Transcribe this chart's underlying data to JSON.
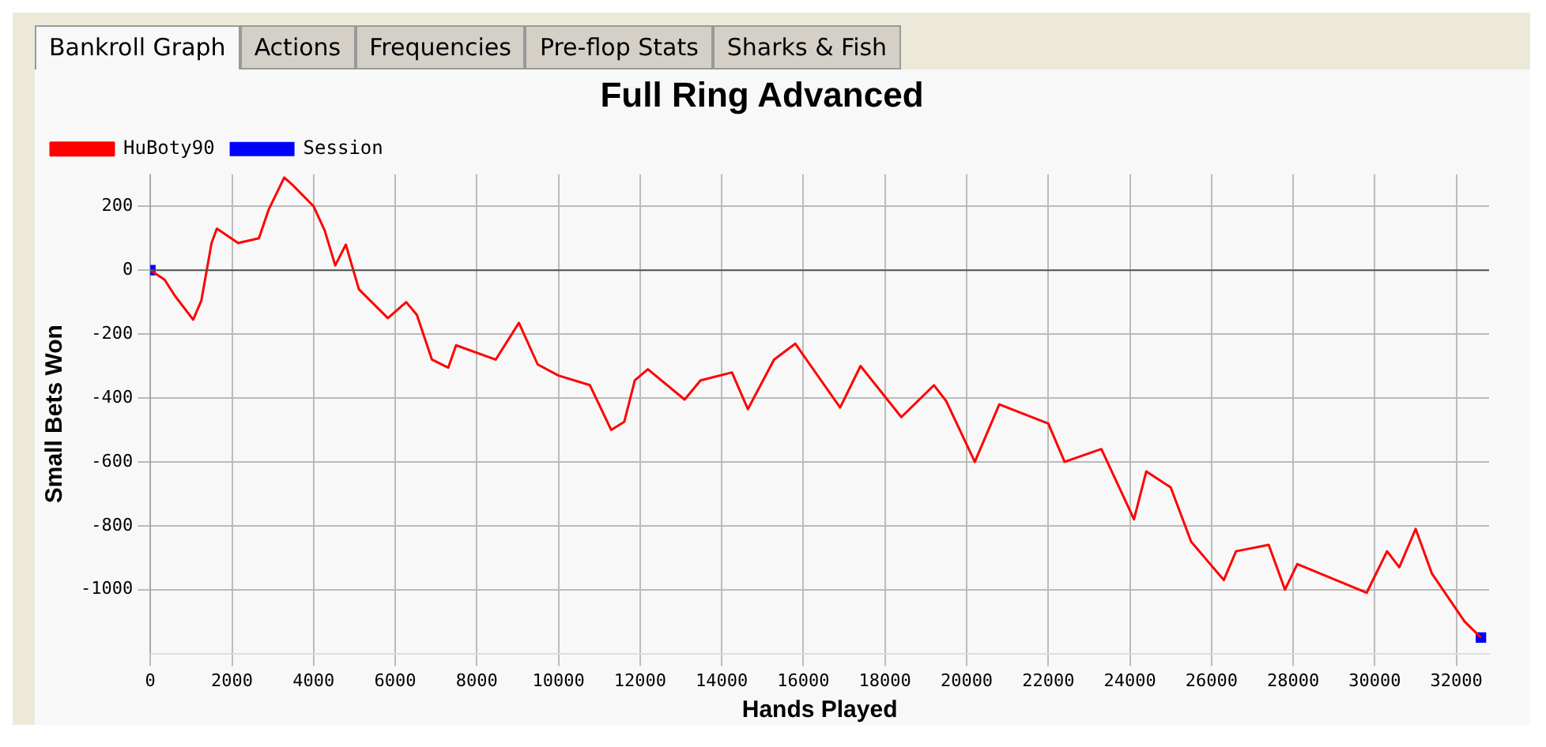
{
  "chart_data": {
    "type": "line",
    "title": "Full Ring Advanced",
    "xlabel": "Hands Played",
    "ylabel": "Small Bets Won",
    "annotations": [
      "Bankroll Graph",
      "Actions",
      "Frequencies",
      "Pre-flop Stats",
      "Sharks & Fish"
    ],
    "series": [
      {
        "name": "HuBoty90",
        "color": "#ff0000",
        "marker": "none",
        "x": [
          0,
          350,
          600,
          1050,
          1250,
          1500,
          1630,
          2150,
          2660,
          2900,
          3280,
          3500,
          4000,
          4270,
          4530,
          4790,
          5110,
          5820,
          6270,
          6530,
          6900,
          7300,
          7490,
          8460,
          9030,
          9490,
          10000,
          10770,
          11290,
          11610,
          11870,
          12190,
          13090,
          13480,
          14250,
          14640,
          15280,
          15800,
          16900,
          17400,
          18400,
          19200,
          19500,
          20200,
          20800,
          22000,
          22400,
          23300,
          24100,
          24400,
          25000,
          25500,
          26300,
          26600,
          27400,
          27800,
          28100,
          29800,
          30300,
          30600,
          31000,
          31400,
          32200,
          32600
        ],
        "values": [
          0,
          -30,
          -80,
          -155,
          -95,
          85,
          130,
          85,
          100,
          190,
          290,
          265,
          200,
          125,
          15,
          80,
          -60,
          -150,
          -100,
          -140,
          -280,
          -305,
          -235,
          -280,
          -165,
          -295,
          -330,
          -360,
          -500,
          -475,
          -345,
          -310,
          -405,
          -345,
          -320,
          -435,
          -280,
          -230,
          -430,
          -300,
          -460,
          -360,
          -410,
          -600,
          -420,
          -480,
          -600,
          -560,
          -780,
          -630,
          -680,
          -850,
          -970,
          -880,
          -860,
          -1000,
          -920,
          -1010,
          -880,
          -930,
          -810,
          -950,
          -1100,
          -1150
        ]
      },
      {
        "name": "Session",
        "color": "#0000ff",
        "type": "scatter",
        "marker": "square",
        "x": [
          0,
          32600
        ],
        "values": [
          0,
          -1150
        ]
      }
    ],
    "xlim": [
      0,
      32800
    ],
    "xticks": [
      0,
      2000,
      4000,
      6000,
      8000,
      10000,
      12000,
      14000,
      16000,
      18000,
      20000,
      22000,
      24000,
      26000,
      28000,
      30000,
      32000
    ],
    "ylim": [
      -1200,
      300
    ],
    "yticks": [
      -1000,
      -800,
      -600,
      -400,
      -200,
      0,
      200
    ],
    "ref_lines": [
      {
        "axis": "y",
        "value": 0,
        "color": "#555555"
      }
    ],
    "grid": true,
    "legend": "top left",
    "line_style": "solid"
  }
}
